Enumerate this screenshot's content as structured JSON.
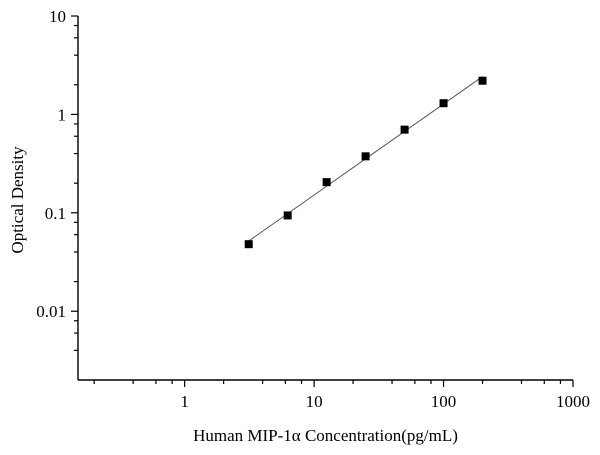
{
  "chart_data": {
    "type": "scatter",
    "title": "",
    "xlabel": "Human MIP-1α Concentration(pg/mL)",
    "ylabel": "Optical Density",
    "xscale": "log",
    "yscale": "log",
    "xlim": [
      0.15,
      1000
    ],
    "ylim": [
      0.002,
      10
    ],
    "x_ticks": [
      {
        "value": 1,
        "label": "1"
      },
      {
        "value": 10,
        "label": "10"
      },
      {
        "value": 100,
        "label": "100"
      },
      {
        "value": 1000,
        "label": "1000"
      }
    ],
    "y_ticks": [
      {
        "value": 0.01,
        "label": "0.01"
      },
      {
        "value": 0.1,
        "label": "0.1"
      },
      {
        "value": 1,
        "label": "1"
      },
      {
        "value": 10,
        "label": "10"
      }
    ],
    "grid": false,
    "legend": "none",
    "marker": "square",
    "fit_line": true,
    "series": [
      {
        "name": "",
        "x": [
          3.125,
          6.25,
          12.5,
          25,
          50,
          100,
          200
        ],
        "y": [
          0.048,
          0.094,
          0.205,
          0.375,
          0.7,
          1.3,
          2.2
        ]
      }
    ]
  }
}
